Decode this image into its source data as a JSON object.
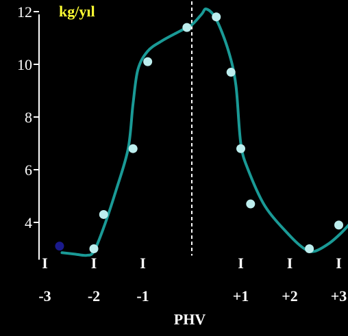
{
  "chart_data": {
    "type": "scatter",
    "title": "",
    "ylabel": "kg/yıl",
    "xlabel": "PHV",
    "ylim": [
      3,
      12
    ],
    "xlim": [
      -3.2,
      3.2
    ],
    "y_ticks": [
      "4",
      "6",
      "8",
      "10",
      "12"
    ],
    "x_ticks": [
      "-3",
      "-2",
      "-1",
      "+1",
      "+2",
      "+3"
    ],
    "x_tick_mark": "I",
    "reference_line_x": 0,
    "series": [
      {
        "role": "points",
        "color": "#bdeeee",
        "points": [
          [
            -2.0,
            3.0
          ],
          [
            -1.8,
            4.3
          ],
          [
            -1.2,
            6.8
          ],
          [
            -0.9,
            10.1
          ],
          [
            -0.1,
            11.4
          ],
          [
            0.5,
            11.8
          ],
          [
            0.8,
            9.7
          ],
          [
            1.0,
            6.8
          ],
          [
            1.2,
            4.7
          ],
          [
            2.4,
            3.0
          ],
          [
            3.0,
            3.9
          ]
        ]
      },
      {
        "role": "highlight-point",
        "color": "#1a1a8c",
        "points": [
          [
            -2.7,
            3.1
          ]
        ]
      },
      {
        "role": "trend-curve",
        "color": "#1a9a96",
        "points": [
          [
            -2.65,
            2.85
          ],
          [
            -2.4,
            2.8
          ],
          [
            -2.15,
            2.75
          ],
          [
            -2.0,
            2.9
          ],
          [
            -1.8,
            3.8
          ],
          [
            -1.55,
            5.2
          ],
          [
            -1.3,
            6.8
          ],
          [
            -1.2,
            8.5
          ],
          [
            -1.1,
            9.8
          ],
          [
            -0.9,
            10.5
          ],
          [
            -0.6,
            10.9
          ],
          [
            -0.2,
            11.3
          ],
          [
            0.0,
            11.5
          ],
          [
            0.2,
            11.9
          ],
          [
            0.3,
            12.1
          ],
          [
            0.5,
            11.7
          ],
          [
            0.75,
            10.5
          ],
          [
            0.9,
            9.2
          ],
          [
            1.0,
            7.0
          ],
          [
            1.15,
            6.0
          ],
          [
            1.5,
            4.6
          ],
          [
            2.0,
            3.5
          ],
          [
            2.3,
            3.0
          ],
          [
            2.5,
            2.9
          ],
          [
            2.8,
            3.2
          ],
          [
            3.05,
            3.6
          ],
          [
            3.25,
            4.0
          ]
        ]
      }
    ]
  }
}
